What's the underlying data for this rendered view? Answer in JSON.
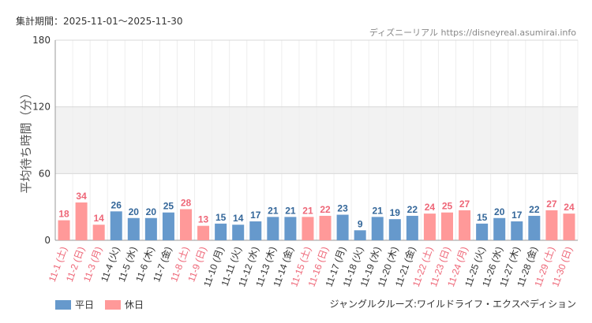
{
  "header": {
    "period": "集計期間：2025-11-01～2025-11-30",
    "source": "ディズニーリアル https://disneyreal.asumirai.info"
  },
  "footer": {
    "attraction": "ジャングルクルーズ:ワイルドライフ・エクスペディション"
  },
  "colors": {
    "weekday": "#6699cc",
    "holiday": "#ff9999",
    "weekday_label": "#336699",
    "holiday_label": "#ee6677",
    "band": "#f2f2f2"
  },
  "chart_data": {
    "type": "bar",
    "ylabel": "平均待ち時間（分）",
    "ylim": [
      0,
      180
    ],
    "yticks": [
      "0",
      "60",
      "120",
      "180"
    ],
    "legend": {
      "weekday": "平日",
      "holiday": "休日",
      "position": "bottom-left"
    },
    "categories": [
      "11-1 (土)",
      "11-2 (日)",
      "11-3 (月)",
      "11-4 (火)",
      "11-5 (水)",
      "11-6 (木)",
      "11-7 (金)",
      "11-8 (土)",
      "11-9 (日)",
      "11-10 (月)",
      "11-11 (火)",
      "11-12 (水)",
      "11-13 (木)",
      "11-14 (金)",
      "11-15 (土)",
      "11-16 (日)",
      "11-17 (月)",
      "11-18 (火)",
      "11-19 (水)",
      "11-20 (木)",
      "11-21 (金)",
      "11-22 (土)",
      "11-23 (日)",
      "11-24 (月)",
      "11-25 (火)",
      "11-26 (水)",
      "11-27 (木)",
      "11-28 (金)",
      "11-29 (土)",
      "11-30 (日)"
    ],
    "values": [
      18,
      34,
      14,
      26,
      20,
      20,
      25,
      28,
      13,
      15,
      14,
      17,
      21,
      21,
      21,
      22,
      23,
      9,
      21,
      19,
      22,
      24,
      25,
      27,
      15,
      20,
      17,
      22,
      27,
      24
    ],
    "holiday": [
      true,
      true,
      true,
      false,
      false,
      false,
      false,
      true,
      true,
      false,
      false,
      false,
      false,
      false,
      true,
      true,
      false,
      false,
      false,
      false,
      false,
      true,
      true,
      true,
      false,
      false,
      false,
      false,
      true,
      true
    ]
  }
}
